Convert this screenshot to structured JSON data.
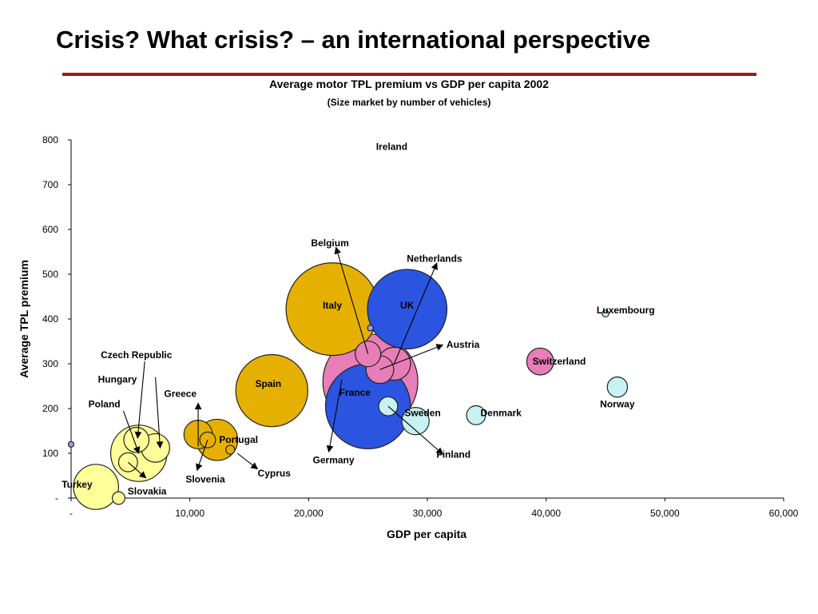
{
  "slide": {
    "title": "Crisis? What crisis? – an international perspective",
    "rule_color": "#9b1b1b"
  },
  "chart_data": {
    "type": "scatter",
    "title": "Average motor TPL premium vs GDP per capita 2002",
    "subtitle": "(Size market by number of vehicles)",
    "xlabel": "GDP per capita",
    "ylabel": "Average TPL premium",
    "xlim": [
      0,
      60000
    ],
    "ylim": [
      0,
      800
    ],
    "x_ticks": [
      0,
      10000,
      20000,
      30000,
      40000,
      50000,
      60000
    ],
    "x_tick_labels": [
      "-",
      "10,000",
      "20,000",
      "30,000",
      "40,000",
      "50,000",
      "60,000"
    ],
    "y_ticks": [
      0,
      100,
      200,
      300,
      400,
      500,
      600,
      700,
      800
    ],
    "y_tick_labels": [
      "-",
      "100",
      "200",
      "300",
      "400",
      "500",
      "600",
      "700",
      "800"
    ],
    "grid": false,
    "legend": "none",
    "bubble_size_meaning": "Size market by number of vehicles",
    "colors": {
      "yellow": "#ffff99",
      "gold": "#e6b000",
      "blue": "#2b55e0",
      "pink": "#e87eb8",
      "cyan": "#c8f2f2",
      "lavender": "#9d9de8"
    },
    "points": [
      {
        "name": "Turkey",
        "x": 2100,
        "y": 25,
        "size": 9,
        "color": "yellow"
      },
      {
        "name": "Slovakia",
        "x": 4000,
        "y": 0,
        "size": 0.7,
        "color": "yellow"
      },
      {
        "name": "Poland",
        "x": 5700,
        "y": 100,
        "size": 14,
        "color": "yellow"
      },
      {
        "name": "Hungary",
        "x": 5500,
        "y": 130,
        "size": 2.8,
        "color": "yellow"
      },
      {
        "name": "Czech Republic",
        "x": 7100,
        "y": 112,
        "size": 3.6,
        "color": "yellow"
      },
      {
        "name": "Slovakia2",
        "x": 4800,
        "y": 80,
        "size": 1.6,
        "color": "yellow",
        "hide_label": true
      },
      {
        "name": "Greece",
        "x": 10700,
        "y": 142,
        "size": 3.6,
        "color": "gold"
      },
      {
        "name": "Portugal",
        "x": 12300,
        "y": 130,
        "size": 7.5,
        "color": "gold"
      },
      {
        "name": "Slovenia",
        "x": 11500,
        "y": 130,
        "size": 1.1,
        "color": "gold"
      },
      {
        "name": "Cyprus",
        "x": 13400,
        "y": 108,
        "size": 0.35,
        "color": "gold"
      },
      {
        "name": "Spain",
        "x": 16900,
        "y": 240,
        "size": 23,
        "color": "gold"
      },
      {
        "name": "Italy",
        "x": 22000,
        "y": 422,
        "size": 38,
        "color": "gold"
      },
      {
        "name": "Ireland",
        "x": 25200,
        "y": 380,
        "size": 0.15,
        "color": "lavender"
      },
      {
        "name": "UK",
        "x": 28300,
        "y": 422,
        "size": 28,
        "color": "blue"
      },
      {
        "name": "France",
        "x": 25200,
        "y": 260,
        "size": 40,
        "color": "pink"
      },
      {
        "name": "Germany",
        "x": 25000,
        "y": 205,
        "size": 32,
        "color": "blue"
      },
      {
        "name": "Belgium",
        "x": 25000,
        "y": 322,
        "size": 2.9,
        "color": "pink"
      },
      {
        "name": "Netherlands",
        "x": 27200,
        "y": 300,
        "size": 4.8,
        "color": "pink"
      },
      {
        "name": "Austria",
        "x": 26000,
        "y": 287,
        "size": 3.4,
        "color": "pink"
      },
      {
        "name": "Sweden",
        "x": 26700,
        "y": 205,
        "size": 1.6,
        "color": "cyan"
      },
      {
        "name": "Finland",
        "x": 29000,
        "y": 172,
        "size": 3.3,
        "color": "cyan"
      },
      {
        "name": "Denmark",
        "x": 34100,
        "y": 185,
        "size": 1.6,
        "color": "cyan"
      },
      {
        "name": "Switzerland",
        "x": 39500,
        "y": 305,
        "size": 3.2,
        "color": "pink"
      },
      {
        "name": "Norway",
        "x": 46000,
        "y": 248,
        "size": 1.8,
        "color": "cyan"
      },
      {
        "name": "Luxembourg",
        "x": 45000,
        "y": 412,
        "size": 0.2,
        "color": "cyan"
      },
      {
        "name": "Unlabeled",
        "x": 0,
        "y": 120,
        "size": 0.1,
        "color": "lavender",
        "hide_label": true
      }
    ],
    "labels": [
      {
        "text": "Ireland",
        "x": 27000,
        "y": 785
      },
      {
        "text": "Belgium",
        "x": 21800,
        "y": 570
      },
      {
        "text": "Netherlands",
        "x": 30600,
        "y": 535
      },
      {
        "text": "Italy",
        "x": 22000,
        "y": 430
      },
      {
        "text": "UK",
        "x": 28300,
        "y": 430
      },
      {
        "text": "Luxembourg",
        "x": 46700,
        "y": 420
      },
      {
        "text": "Austria",
        "x": 33000,
        "y": 343
      },
      {
        "text": "Switzerland",
        "x": 41100,
        "y": 305
      },
      {
        "text": "France",
        "x": 23900,
        "y": 236
      },
      {
        "text": "Spain",
        "x": 16600,
        "y": 255
      },
      {
        "text": "Norway",
        "x": 46000,
        "y": 210
      },
      {
        "text": "Sweden",
        "x": 29600,
        "y": 190
      },
      {
        "text": "Denmark",
        "x": 36200,
        "y": 190
      },
      {
        "text": "Czech Republic",
        "x": 5500,
        "y": 320
      },
      {
        "text": "Hungary",
        "x": 3900,
        "y": 265
      },
      {
        "text": "Greece",
        "x": 9200,
        "y": 233
      },
      {
        "text": "Poland",
        "x": 2800,
        "y": 210
      },
      {
        "text": "Portugal",
        "x": 14100,
        "y": 130
      },
      {
        "text": "Finland",
        "x": 32200,
        "y": 97
      },
      {
        "text": "Germany",
        "x": 22100,
        "y": 85
      },
      {
        "text": "Cyprus",
        "x": 17100,
        "y": 55
      },
      {
        "text": "Slovenia",
        "x": 11300,
        "y": 42
      },
      {
        "text": "Slovakia",
        "x": 6400,
        "y": 15
      },
      {
        "text": "Turkey",
        "x": 500,
        "y": 30
      }
    ],
    "arrows": [
      {
        "from": [
          25000,
          322
        ],
        "to": [
          22300,
          560
        ]
      },
      {
        "from": [
          27200,
          300
        ],
        "to": [
          30800,
          525
        ]
      },
      {
        "from": [
          26000,
          287
        ],
        "to": [
          31300,
          342
        ]
      },
      {
        "from": [
          26700,
          205
        ],
        "to": [
          31300,
          98
        ]
      },
      {
        "from": [
          22800,
          265
        ],
        "to": [
          21700,
          103
        ]
      },
      {
        "from": [
          6200,
          305
        ],
        "to": [
          5600,
          134
        ]
      },
      {
        "from": [
          7100,
          270
        ],
        "to": [
          7500,
          112
        ]
      },
      {
        "from": [
          4400,
          195
        ],
        "to": [
          5700,
          100
        ]
      },
      {
        "from": [
          10700,
          115
        ],
        "to": [
          10700,
          212
        ]
      },
      {
        "from": [
          14000,
          100
        ],
        "to": [
          15700,
          65
        ]
      },
      {
        "from": [
          11500,
          130
        ],
        "to": [
          10600,
          62
        ]
      },
      {
        "from": [
          4800,
          80
        ],
        "to": [
          6300,
          45
        ]
      }
    ]
  }
}
